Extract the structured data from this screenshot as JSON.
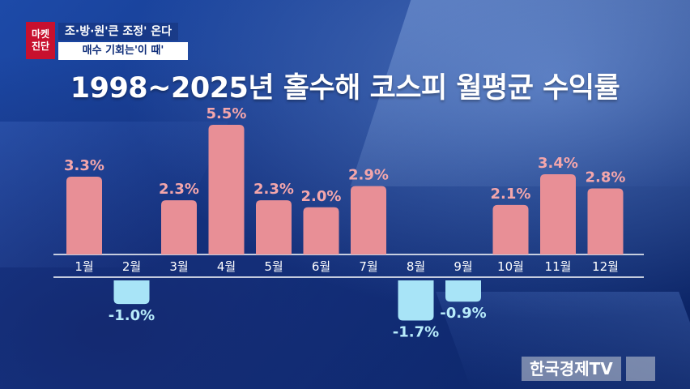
{
  "badge": {
    "line1": "마켓",
    "line2": "진단"
  },
  "subtitle": {
    "line1": "조·방·원'큰 조정' 온다",
    "line2": "매수 기회는'이 때'"
  },
  "watermark": "한국경제TV",
  "colors": {
    "positive": "#e88f96",
    "negative": "#a8e4f7",
    "pos_label": "#f4a6ab",
    "neg_label": "#b8ecfb",
    "axis": "#ffffff"
  },
  "chart_data": {
    "type": "bar",
    "title": "1998~2025년 홀수해 코스피 월평균 수익률",
    "categories": [
      "1월",
      "2월",
      "3월",
      "4월",
      "5월",
      "6월",
      "7월",
      "8월",
      "9월",
      "10월",
      "11월",
      "12월"
    ],
    "values": [
      3.3,
      -1.0,
      2.3,
      5.5,
      2.3,
      2.0,
      2.9,
      -1.7,
      -0.9,
      2.1,
      3.4,
      2.8
    ],
    "labels": [
      "3.3%",
      "-1.0%",
      "2.3%",
      "5.5%",
      "2.3%",
      "2.0%",
      "2.9%",
      "-1.7%",
      "-0.9%",
      "2.1%",
      "3.4%",
      "2.8%"
    ],
    "unit": "%",
    "grid": false,
    "legend": "none"
  }
}
